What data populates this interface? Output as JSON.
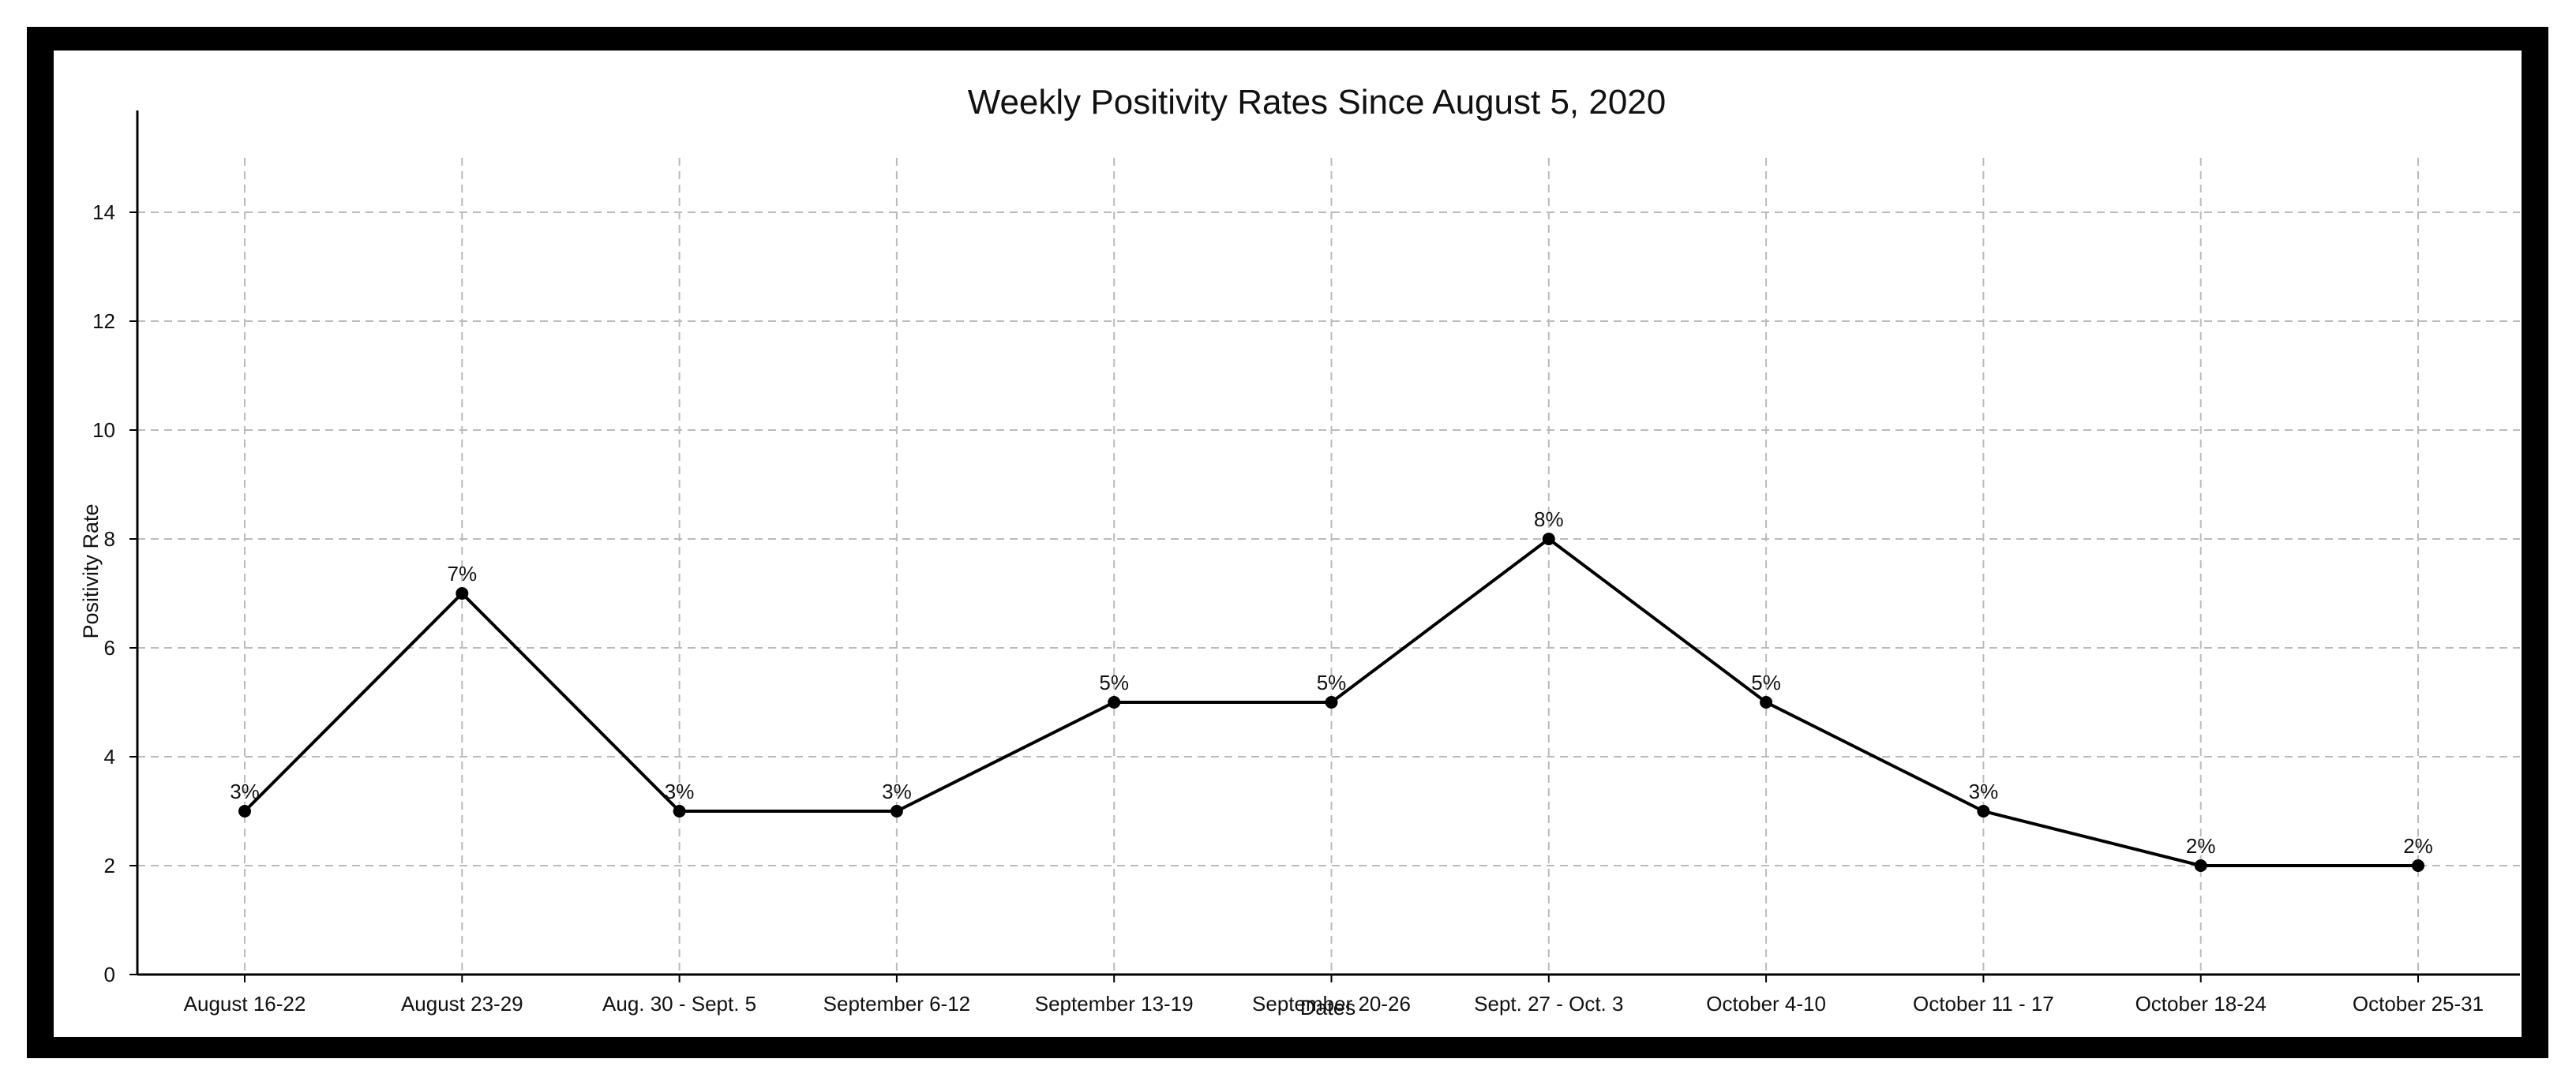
{
  "chart_data": {
    "type": "line",
    "title": "Weekly Positivity Rates Since August 5, 2020",
    "xlabel": "Dates",
    "ylabel": "Positivity Rate",
    "categories": [
      "August 16-22",
      "August 23-29",
      "Aug. 30 - Sept. 5",
      "September 6-12",
      "September 13-19",
      "September 20-26",
      "Sept. 27 - Oct. 3",
      "October 4-10",
      "October 11 - 17",
      "October 18-24",
      "October 25-31"
    ],
    "values": [
      3,
      7,
      3,
      3,
      5,
      5,
      8,
      5,
      3,
      2,
      2
    ],
    "data_labels": [
      "3%",
      "7%",
      "3%",
      "3%",
      "5%",
      "5%",
      "8%",
      "5%",
      "3%",
      "2%",
      "2%"
    ],
    "y_ticks": [
      "0",
      "2",
      "4",
      "6",
      "8",
      "10",
      "12",
      "14"
    ],
    "ylim": [
      0,
      15
    ],
    "grid": true,
    "line_color": "#000000",
    "grid_color": "#bbbbbb"
  }
}
